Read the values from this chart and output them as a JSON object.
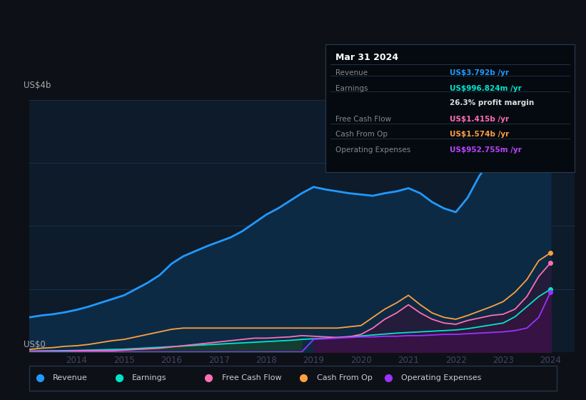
{
  "bg_color": "#0d1117",
  "chart_bg": "#0d1b2a",
  "title": "Mar 31 2024",
  "tooltip": {
    "Revenue": {
      "label": "Revenue",
      "value": "US$3.792b /yr",
      "color": "#00aaff"
    },
    "Earnings": {
      "label": "Earnings",
      "value": "US$996.824m /yr",
      "color": "#00e5cc"
    },
    "profit_margin": {
      "label": "",
      "value": "26.3% profit margin",
      "color": "#ffffff"
    },
    "Free Cash Flow": {
      "label": "Free Cash Flow",
      "value": "US$1.415b /yr",
      "color": "#ff6eb4"
    },
    "Cash From Op": {
      "label": "Cash From Op",
      "value": "US$1.574b /yr",
      "color": "#ffa040"
    },
    "Operating Expenses": {
      "label": "Operating Expenses",
      "value": "US$952.755m /yr",
      "color": "#bb44ff"
    }
  },
  "ylabel_top": "US$4b",
  "ylabel_bottom": "US$0",
  "years": [
    2013.0,
    2013.25,
    2013.5,
    2013.75,
    2014.0,
    2014.25,
    2014.5,
    2014.75,
    2015.0,
    2015.25,
    2015.5,
    2015.75,
    2016.0,
    2016.25,
    2016.5,
    2016.75,
    2017.0,
    2017.25,
    2017.5,
    2017.75,
    2018.0,
    2018.25,
    2018.5,
    2018.75,
    2019.0,
    2019.25,
    2019.5,
    2019.75,
    2020.0,
    2020.25,
    2020.5,
    2020.75,
    2021.0,
    2021.25,
    2021.5,
    2021.75,
    2022.0,
    2022.25,
    2022.5,
    2022.75,
    2023.0,
    2023.25,
    2023.5,
    2023.75,
    2024.0
  ],
  "revenue": [
    0.55,
    0.58,
    0.6,
    0.63,
    0.67,
    0.72,
    0.78,
    0.84,
    0.9,
    1.0,
    1.1,
    1.22,
    1.4,
    1.52,
    1.6,
    1.68,
    1.75,
    1.82,
    1.92,
    2.05,
    2.18,
    2.28,
    2.4,
    2.52,
    2.62,
    2.58,
    2.55,
    2.52,
    2.5,
    2.48,
    2.52,
    2.55,
    2.6,
    2.52,
    2.38,
    2.28,
    2.22,
    2.45,
    2.8,
    3.05,
    3.18,
    3.35,
    3.52,
    3.68,
    3.79
  ],
  "earnings": [
    0.015,
    0.018,
    0.02,
    0.022,
    0.025,
    0.03,
    0.035,
    0.04,
    0.045,
    0.055,
    0.065,
    0.075,
    0.085,
    0.095,
    0.105,
    0.115,
    0.125,
    0.135,
    0.145,
    0.155,
    0.165,
    0.175,
    0.185,
    0.2,
    0.21,
    0.22,
    0.23,
    0.245,
    0.255,
    0.27,
    0.285,
    0.3,
    0.31,
    0.32,
    0.33,
    0.34,
    0.35,
    0.37,
    0.4,
    0.43,
    0.46,
    0.56,
    0.72,
    0.88,
    0.997
  ],
  "free_cash_flow": [
    0.01,
    0.01,
    0.01,
    0.01,
    0.02,
    0.02,
    0.02,
    0.02,
    0.03,
    0.04,
    0.05,
    0.06,
    0.08,
    0.1,
    0.12,
    0.14,
    0.16,
    0.18,
    0.2,
    0.22,
    0.22,
    0.23,
    0.24,
    0.26,
    0.25,
    0.24,
    0.23,
    0.24,
    0.28,
    0.38,
    0.52,
    0.62,
    0.75,
    0.62,
    0.52,
    0.46,
    0.44,
    0.5,
    0.54,
    0.58,
    0.6,
    0.68,
    0.88,
    1.2,
    1.415
  ],
  "cash_from_op": [
    0.04,
    0.06,
    0.07,
    0.09,
    0.1,
    0.12,
    0.15,
    0.18,
    0.2,
    0.24,
    0.28,
    0.32,
    0.36,
    0.38,
    0.38,
    0.38,
    0.38,
    0.38,
    0.38,
    0.38,
    0.38,
    0.38,
    0.38,
    0.38,
    0.38,
    0.38,
    0.38,
    0.4,
    0.42,
    0.55,
    0.68,
    0.78,
    0.9,
    0.75,
    0.62,
    0.55,
    0.52,
    0.58,
    0.65,
    0.72,
    0.8,
    0.95,
    1.15,
    1.45,
    1.574
  ],
  "operating_expenses": [
    0.0,
    0.0,
    0.0,
    0.0,
    0.0,
    0.0,
    0.0,
    0.0,
    0.0,
    0.0,
    0.0,
    0.0,
    0.0,
    0.0,
    0.0,
    0.0,
    0.0,
    0.0,
    0.0,
    0.0,
    0.0,
    0.0,
    0.0,
    0.0,
    0.2,
    0.21,
    0.22,
    0.23,
    0.24,
    0.24,
    0.25,
    0.25,
    0.26,
    0.26,
    0.27,
    0.28,
    0.28,
    0.29,
    0.3,
    0.31,
    0.32,
    0.34,
    0.38,
    0.55,
    0.953
  ],
  "colors": {
    "revenue": "#2299ff",
    "revenue_fill": "#0d2a45",
    "earnings_teal": "#00e5cc",
    "earnings_fill_early": "#0d3028",
    "earnings_fill_late": "#2a1a40",
    "free_cash_flow": "#ff6eb4",
    "cash_from_op": "#ffa040",
    "operating_expenses": "#9933ff",
    "opex_fill": "#2a1050"
  },
  "legend": [
    {
      "label": "Revenue",
      "color": "#2299ff"
    },
    {
      "label": "Earnings",
      "color": "#00e5cc"
    },
    {
      "label": "Free Cash Flow",
      "color": "#ff6eb4"
    },
    {
      "label": "Cash From Op",
      "color": "#ffa040"
    },
    {
      "label": "Operating Expenses",
      "color": "#9933ff"
    }
  ],
  "xticks": [
    2014,
    2015,
    2016,
    2017,
    2018,
    2019,
    2020,
    2021,
    2022,
    2023,
    2024
  ],
  "ylim": [
    0,
    4.0
  ],
  "xlim": [
    2013.0,
    2024.5
  ]
}
